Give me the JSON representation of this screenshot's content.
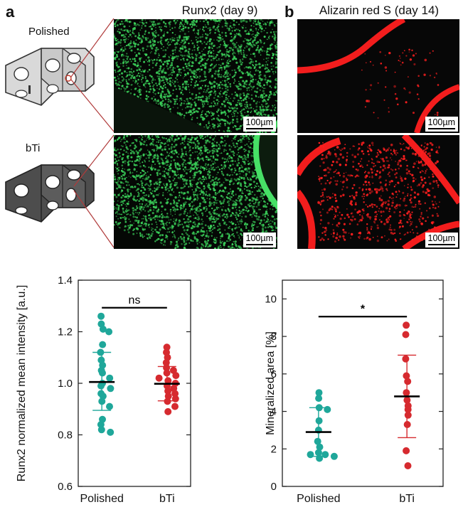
{
  "panel_a": {
    "letter": "a",
    "title": "Runx2 (day 9)",
    "top_label": "Polished",
    "bottom_label": "bTi",
    "scale_bar": "100µm"
  },
  "panel_b": {
    "letter": "b",
    "title": "Alizarin red S (day 14)",
    "scale_bar": "100µm"
  },
  "colors": {
    "polished": "#1fa79a",
    "bti": "#d62a2f",
    "fluor_green": "#3bd15a",
    "fluor_red": "#ff1f1f",
    "bracket_outline": "#333333",
    "polished_fill": "#d9d9d9",
    "bti_fill": "#4d4d4d"
  },
  "chart_data": [
    {
      "type": "scatter",
      "title": "",
      "xlabel": "",
      "ylabel": "Runx2 normalized mean intensity [a.u.]",
      "categories": [
        "Polished",
        "bTi"
      ],
      "ylim": [
        0.6,
        1.4
      ],
      "yticks": [
        "0.6",
        "0.8",
        "1.0",
        "1.2",
        "1.4"
      ],
      "significance": "ns",
      "series": [
        {
          "name": "Polished",
          "mean": 1.005,
          "sd_upper": 1.12,
          "sd_lower": 0.895,
          "values": [
            1.26,
            1.23,
            1.21,
            1.2,
            1.15,
            1.12,
            1.09,
            1.07,
            1.05,
            1.04,
            1.02,
            1.0,
            0.99,
            0.98,
            0.96,
            0.95,
            0.93,
            0.91,
            0.86,
            0.84,
            0.82,
            0.81
          ]
        },
        {
          "name": "bTi",
          "mean": 0.998,
          "sd_upper": 1.065,
          "sd_lower": 0.932,
          "values": [
            1.14,
            1.12,
            1.1,
            1.08,
            1.06,
            1.05,
            1.04,
            1.03,
            1.02,
            1.01,
            1.0,
            0.99,
            0.98,
            0.97,
            0.96,
            0.95,
            0.94,
            0.93,
            0.91,
            0.89
          ]
        }
      ]
    },
    {
      "type": "scatter",
      "title": "",
      "xlabel": "",
      "ylabel": "Mineralized area [%]",
      "categories": [
        "Polished",
        "bTi"
      ],
      "ylim": [
        0,
        11
      ],
      "yticks": [
        "0",
        "2",
        "4",
        "6",
        "8",
        "10"
      ],
      "significance": "*",
      "series": [
        {
          "name": "Polished",
          "mean": 2.9,
          "sd_upper": 4.2,
          "sd_lower": 1.6,
          "values": [
            5.0,
            4.7,
            4.2,
            4.1,
            3.5,
            3.0,
            2.4,
            2.1,
            1.8,
            1.7,
            1.7,
            1.6,
            1.5
          ]
        },
        {
          "name": "bTi",
          "mean": 4.8,
          "sd_upper": 7.0,
          "sd_lower": 2.6,
          "values": [
            8.6,
            8.1,
            6.8,
            5.9,
            5.6,
            5.0,
            4.6,
            4.3,
            4.1,
            3.8,
            3.3,
            1.9,
            1.1
          ]
        }
      ]
    }
  ]
}
